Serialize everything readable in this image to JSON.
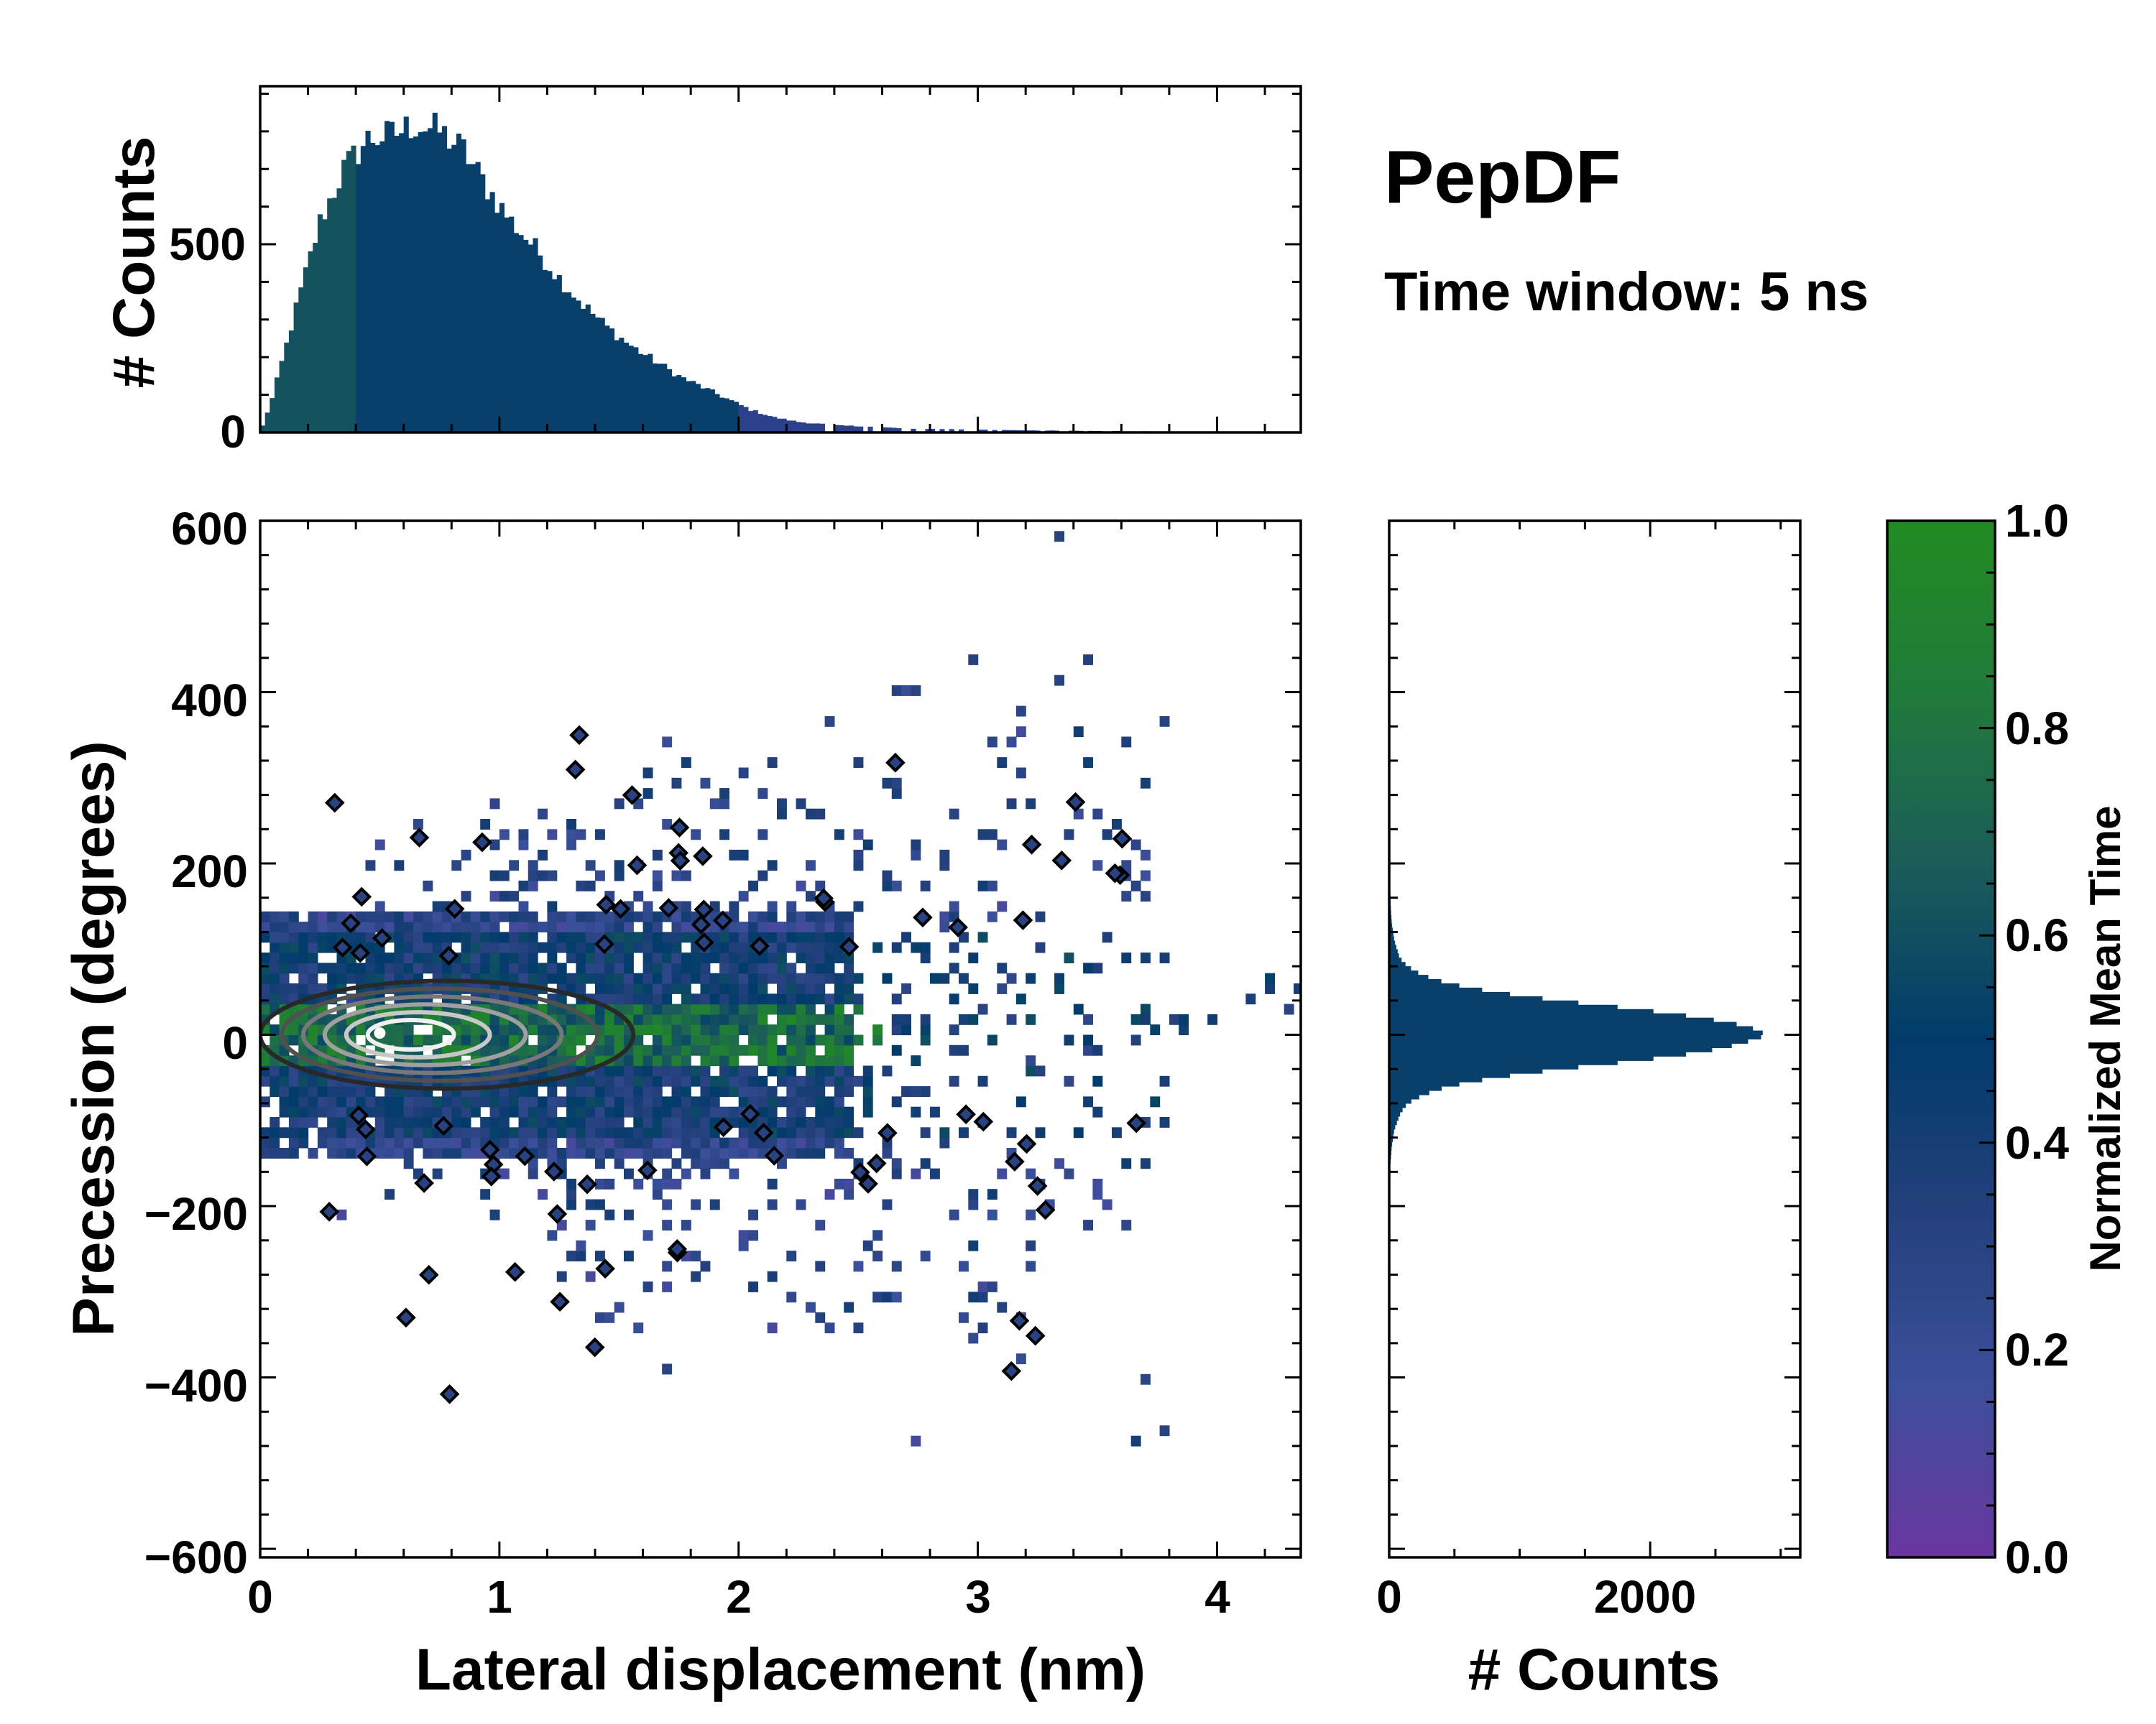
{
  "annotation": {
    "title": "PepDF",
    "subtitle": "Time window: 5 ns"
  },
  "colorbar": {
    "label": "Normalized Mean Time",
    "range": [
      0.0,
      1.0
    ],
    "ticks": [
      "0.0",
      "0.2",
      "0.4",
      "0.6",
      "0.8",
      "1.0"
    ],
    "colors": [
      "#6a36a0",
      "#3b4f9a",
      "#24407c",
      "#003b6b",
      "#1b5c5a",
      "#207a3a",
      "#228b22"
    ]
  },
  "chart_data": [
    {
      "id": "top-histogram",
      "type": "bar",
      "title": "",
      "xlabel": "",
      "ylabel": "# Counts",
      "xlim": [
        0,
        4.35
      ],
      "ylim": [
        0,
        920
      ],
      "yticks": [
        "0",
        "500"
      ],
      "bin_centers_nm": [
        0.05,
        0.15,
        0.25,
        0.35,
        0.45,
        0.55,
        0.65,
        0.75,
        0.85,
        0.95,
        1.05,
        1.15,
        1.25,
        1.35,
        1.45,
        1.55,
        1.65,
        1.75,
        1.85,
        1.95,
        2.05,
        2.15,
        2.25,
        2.35,
        2.45,
        2.55,
        2.65,
        2.75,
        2.85,
        2.95,
        3.05,
        3.15,
        3.25,
        3.35,
        3.45,
        3.55,
        3.65,
        3.75,
        3.85,
        3.95
      ],
      "values": [
        90,
        330,
        560,
        700,
        780,
        790,
        820,
        800,
        750,
        650,
        560,
        490,
        410,
        340,
        280,
        230,
        190,
        150,
        120,
        90,
        60,
        40,
        28,
        22,
        18,
        15,
        12,
        10,
        9,
        8,
        7,
        6,
        5,
        5,
        4,
        4,
        3,
        3,
        2,
        2
      ],
      "color": "#08406b"
    },
    {
      "id": "main-2d-histogram",
      "type": "heatmap",
      "title": "",
      "xlabel": "Lateral displacement (nm)",
      "ylabel": "Precession (degrees)",
      "xlim": [
        0,
        4.35
      ],
      "ylim": [
        -610,
        600
      ],
      "xticks": [
        "0",
        "1",
        "2",
        "3",
        "4"
      ],
      "yticks": [
        "600",
        "400",
        "200",
        "0",
        "−200",
        "−400",
        "−600"
      ],
      "density_contour_levels": 6,
      "density_peak": {
        "x": 0.6,
        "y": 0
      }
    },
    {
      "id": "right-histogram",
      "type": "bar",
      "orientation": "horizontal",
      "title": "",
      "xlabel": "# Counts",
      "ylabel": "",
      "xlim": [
        0,
        3150
      ],
      "xticks": [
        "0",
        "2000"
      ],
      "bin_centers_deg": [
        -150,
        -130,
        -110,
        -90,
        -80,
        -70,
        -60,
        -50,
        -40,
        -30,
        -20,
        -10,
        0,
        10,
        20,
        30,
        40,
        50,
        60,
        70,
        80,
        90,
        110,
        130,
        150,
        170
      ],
      "values": [
        10,
        20,
        40,
        90,
        140,
        260,
        450,
        800,
        1300,
        1900,
        2400,
        2700,
        2900,
        2750,
        2400,
        1900,
        1300,
        800,
        450,
        250,
        140,
        80,
        40,
        20,
        12,
        8
      ],
      "color": "#08406b"
    }
  ]
}
